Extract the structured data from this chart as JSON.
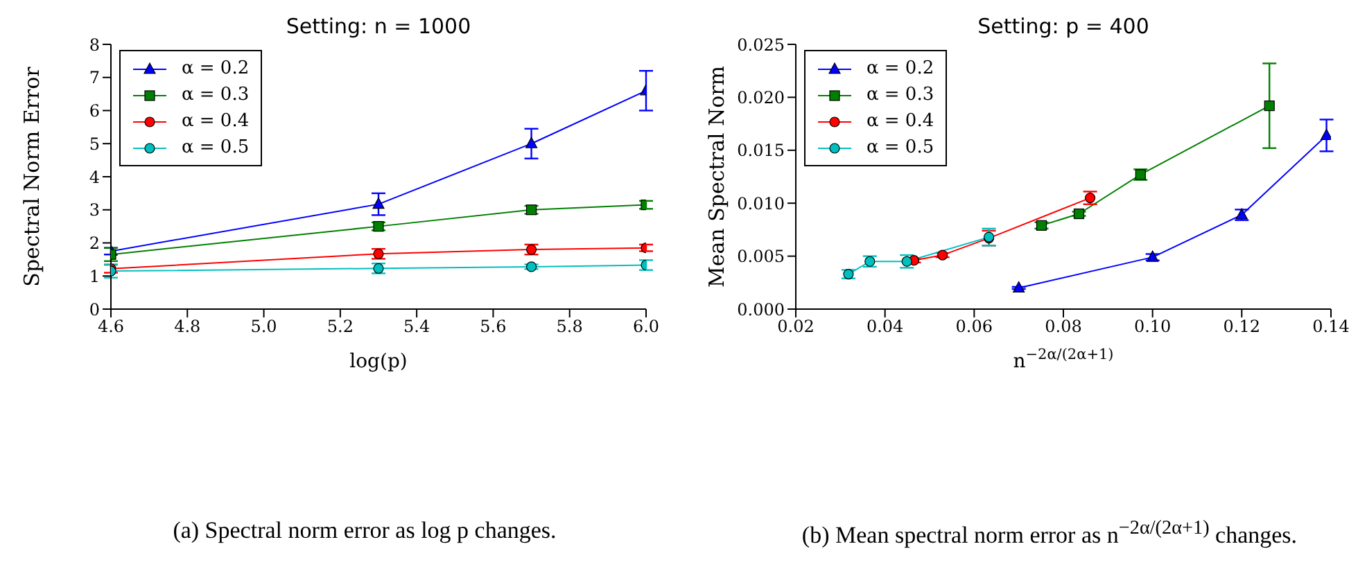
{
  "chart_data": [
    {
      "type": "line",
      "title": "Setting: n = 1000",
      "xlabel": "log(p)",
      "ylabel": "Spectral Norm Error",
      "x": [
        4.6,
        5.3,
        5.7,
        6.0
      ],
      "series": [
        {
          "name": "α = 0.2",
          "color": "#0000ff",
          "marker": "triangle",
          "values": [
            1.75,
            3.17,
            5.0,
            6.6
          ],
          "errors": [
            0.1,
            0.33,
            0.45,
            0.6
          ]
        },
        {
          "name": "α = 0.3",
          "color": "#008000",
          "marker": "square",
          "values": [
            1.65,
            2.5,
            3.0,
            3.15
          ],
          "errors": [
            0.2,
            0.12,
            0.12,
            0.12
          ]
        },
        {
          "name": "α = 0.4",
          "color": "#ff0000",
          "marker": "circle",
          "values": [
            1.22,
            1.67,
            1.8,
            1.85
          ],
          "errors": [
            0.12,
            0.15,
            0.15,
            0.1
          ]
        },
        {
          "name": "α = 0.5",
          "color": "#00bfbf",
          "marker": "circle",
          "values": [
            1.15,
            1.23,
            1.28,
            1.33
          ],
          "errors": [
            0.2,
            0.15,
            0.07,
            0.15
          ]
        }
      ],
      "xlim": [
        4.6,
        6.0
      ],
      "xticks": [
        4.6,
        4.8,
        {
          "value": 5.0,
          "label": "5.0"
        },
        5.2,
        5.4,
        5.6,
        5.8,
        {
          "value": 6.0,
          "label": "6.0"
        }
      ],
      "ylim": [
        0,
        8
      ],
      "yticks": [
        0,
        1,
        2,
        3,
        4,
        5,
        6,
        7,
        8
      ],
      "grid": false,
      "legend": "top left",
      "annotations": [
        "(a) Spectral norm error as log p changes."
      ]
    },
    {
      "type": "line",
      "title": "Setting: p = 400",
      "xlabel": "n$^{−2α/(2α+1)}$",
      "ylabel": "Mean Spectral Norm",
      "series": [
        {
          "name": "α = 0.2",
          "color": "#0000ff",
          "marker": "triangle",
          "x": [
            0.07,
            0.1,
            0.12,
            0.139
          ],
          "values": [
            0.002,
            0.0049,
            0.0089,
            0.0164
          ],
          "errors": [
            0.0001,
            0.0003,
            0.0005,
            0.0015
          ]
        },
        {
          "name": "α = 0.3",
          "color": "#008000",
          "marker": "square",
          "x": [
            0.0751,
            0.0835,
            0.0973,
            0.1262
          ],
          "values": [
            0.0079,
            0.009,
            0.0127,
            0.0192
          ],
          "errors": [
            0.0003,
            0.0002,
            0.0005,
            0.004
          ]
        },
        {
          "name": "α = 0.4",
          "color": "#ff0000",
          "marker": "circle",
          "x": [
            0.0465,
            0.0529,
            0.0633,
            0.086
          ],
          "values": [
            0.0046,
            0.0051,
            0.0067,
            0.0105
          ],
          "errors": [
            0.0002,
            0.0002,
            0.0007,
            0.0006
          ]
        },
        {
          "name": "α = 0.5",
          "color": "#00bfbf",
          "marker": "circle",
          "x": [
            0.0318,
            0.0366,
            0.0449,
            0.0633
          ],
          "values": [
            0.0033,
            0.0045,
            0.0045,
            0.0068
          ],
          "errors": [
            0.0004,
            0.0005,
            0.0006,
            0.0008
          ]
        }
      ],
      "xlim": [
        0.02,
        0.14
      ],
      "xticks": [
        0.02,
        0.04,
        0.06,
        0.08,
        {
          "value": 0.1,
          "label": "0.10"
        },
        0.12,
        0.14
      ],
      "ylim": [
        0,
        0.025
      ],
      "yticks": [
        {
          "value": 0,
          "label": "0.000"
        },
        0.005,
        {
          "value": 0.01,
          "label": "0.010"
        },
        0.015,
        {
          "value": 0.02,
          "label": "0.020"
        },
        0.025
      ],
      "grid": false,
      "legend": "top left",
      "annotations": [
        "(b) Mean spectral norm error as n$^{−2α/(2α+1)}$ changes."
      ]
    }
  ]
}
